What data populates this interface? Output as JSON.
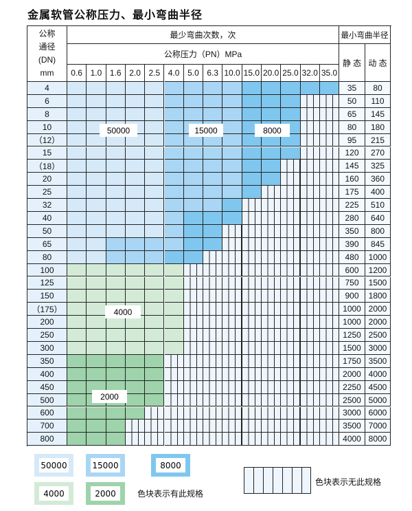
{
  "title": "金属软管公称压力、最小弯曲半径",
  "header": {
    "dn_lines": [
      "公称",
      "通径",
      "(DN)",
      "mm"
    ],
    "bend_count": "最少弯曲次数，次",
    "pressure": "公称压力（PN）MPa",
    "min_radius": "最小弯曲半径",
    "static": "静 态",
    "dynamic": "动 态",
    "pressures": [
      "0.6",
      "1.0",
      "1.6",
      "2.0",
      "2.5",
      "4.0",
      "5.0",
      "6.3",
      "10.0",
      "15.0",
      "20.0",
      "25.0",
      "32.0",
      "35.0"
    ]
  },
  "colors": {
    "L": "#d5e9f9",
    "M": "#a9d6f4",
    "D": "#80c7ef",
    "G": "#d3eAd7",
    "H": "#9ed3ab",
    "X": "#eef5fc"
  },
  "rows": [
    {
      "dn": "4",
      "s": "35",
      "d": "80",
      "cells": "LLLLLMMMMDDDDD"
    },
    {
      "dn": "6",
      "s": "50",
      "d": "110",
      "cells": "LLLLLMMMMDDDXX"
    },
    {
      "dn": "8",
      "s": "65",
      "d": "145",
      "cells": "LLLLLMMMMDDDXX"
    },
    {
      "dn": "10",
      "s": "80",
      "d": "180",
      "cells": "LLLLLMMMMDDDXX"
    },
    {
      "dn": "（12）",
      "s": "95",
      "d": "215",
      "cells": "LLLLLMMMMDDDXX"
    },
    {
      "dn": "15",
      "s": "120",
      "d": "270",
      "cells": "LLLLLMMMMDDDXX"
    },
    {
      "dn": "（18）",
      "s": "145",
      "d": "325",
      "cells": "LLLLLMMMMDDXXX"
    },
    {
      "dn": "20",
      "s": "160",
      "d": "360",
      "cells": "LLLLLMMMMDDXXX"
    },
    {
      "dn": "25",
      "s": "175",
      "d": "400",
      "cells": "LLLLLMMMMDXXXX"
    },
    {
      "dn": "32",
      "s": "225",
      "d": "510",
      "cells": "LLLLLMMMDXXXXX"
    },
    {
      "dn": "40",
      "s": "280",
      "d": "640",
      "cells": "LLLLLMDDDXXXXX"
    },
    {
      "dn": "50",
      "s": "350",
      "d": "800",
      "cells": "LLLLLMDDXXXXXX"
    },
    {
      "dn": "65",
      "s": "390",
      "d": "845",
      "cells": "LLMMMMDDXXXXXX"
    },
    {
      "dn": "80",
      "s": "480",
      "d": "1000",
      "cells": "LLMMMDDXXXXXXX"
    },
    {
      "dn": "100",
      "s": "600",
      "d": "1200",
      "cells": "GGGGGGXXXXXXXX"
    },
    {
      "dn": "125",
      "s": "750",
      "d": "1500",
      "cells": "GGGGGGXXXXXXXX"
    },
    {
      "dn": "150",
      "s": "900",
      "d": "1800",
      "cells": "GGGGGGXXXXXXXX"
    },
    {
      "dn": "（175）",
      "s": "1000",
      "d": "2000",
      "cells": "GGGGGGXXXXXXXX"
    },
    {
      "dn": "200",
      "s": "1000",
      "d": "2000",
      "cells": "GGGGGGXXXXXXXX"
    },
    {
      "dn": "250",
      "s": "1250",
      "d": "2500",
      "cells": "GGGGGGXXXXXXXX"
    },
    {
      "dn": "300",
      "s": "1500",
      "d": "3000",
      "cells": "GGGGGGXXXXXXXX"
    },
    {
      "dn": "350",
      "s": "1750",
      "d": "3500",
      "cells": "HHHHHXXXXXXXXX"
    },
    {
      "dn": "400",
      "s": "2000",
      "d": "4000",
      "cells": "HHHHHXXXXXXXXX"
    },
    {
      "dn": "450",
      "s": "2250",
      "d": "4500",
      "cells": "HHHHHXXXXXXXXX"
    },
    {
      "dn": "500",
      "s": "2500",
      "d": "5000",
      "cells": "HHHHHXXXXXXXXX"
    },
    {
      "dn": "600",
      "s": "3000",
      "d": "6000",
      "cells": "HHHHXXXXXXXXXX"
    },
    {
      "dn": "700",
      "s": "3500",
      "d": "7000",
      "cells": "HHHXXXXXXXXXXX"
    },
    {
      "dn": "800",
      "s": "4000",
      "d": "8000",
      "cells": "HHHXXXXXXXXXXX"
    }
  ],
  "region_labels": [
    "50000",
    "15000",
    "8000",
    "4000",
    "2000"
  ],
  "legend": {
    "items": [
      {
        "key": "L",
        "label": "50000"
      },
      {
        "key": "M",
        "label": "15000"
      },
      {
        "key": "D",
        "label": "8000"
      },
      {
        "key": "G",
        "label": "4000"
      },
      {
        "key": "H",
        "label": "2000"
      }
    ],
    "has_spec": "色块表示有此规格",
    "no_spec": "色块表示无此规格"
  }
}
